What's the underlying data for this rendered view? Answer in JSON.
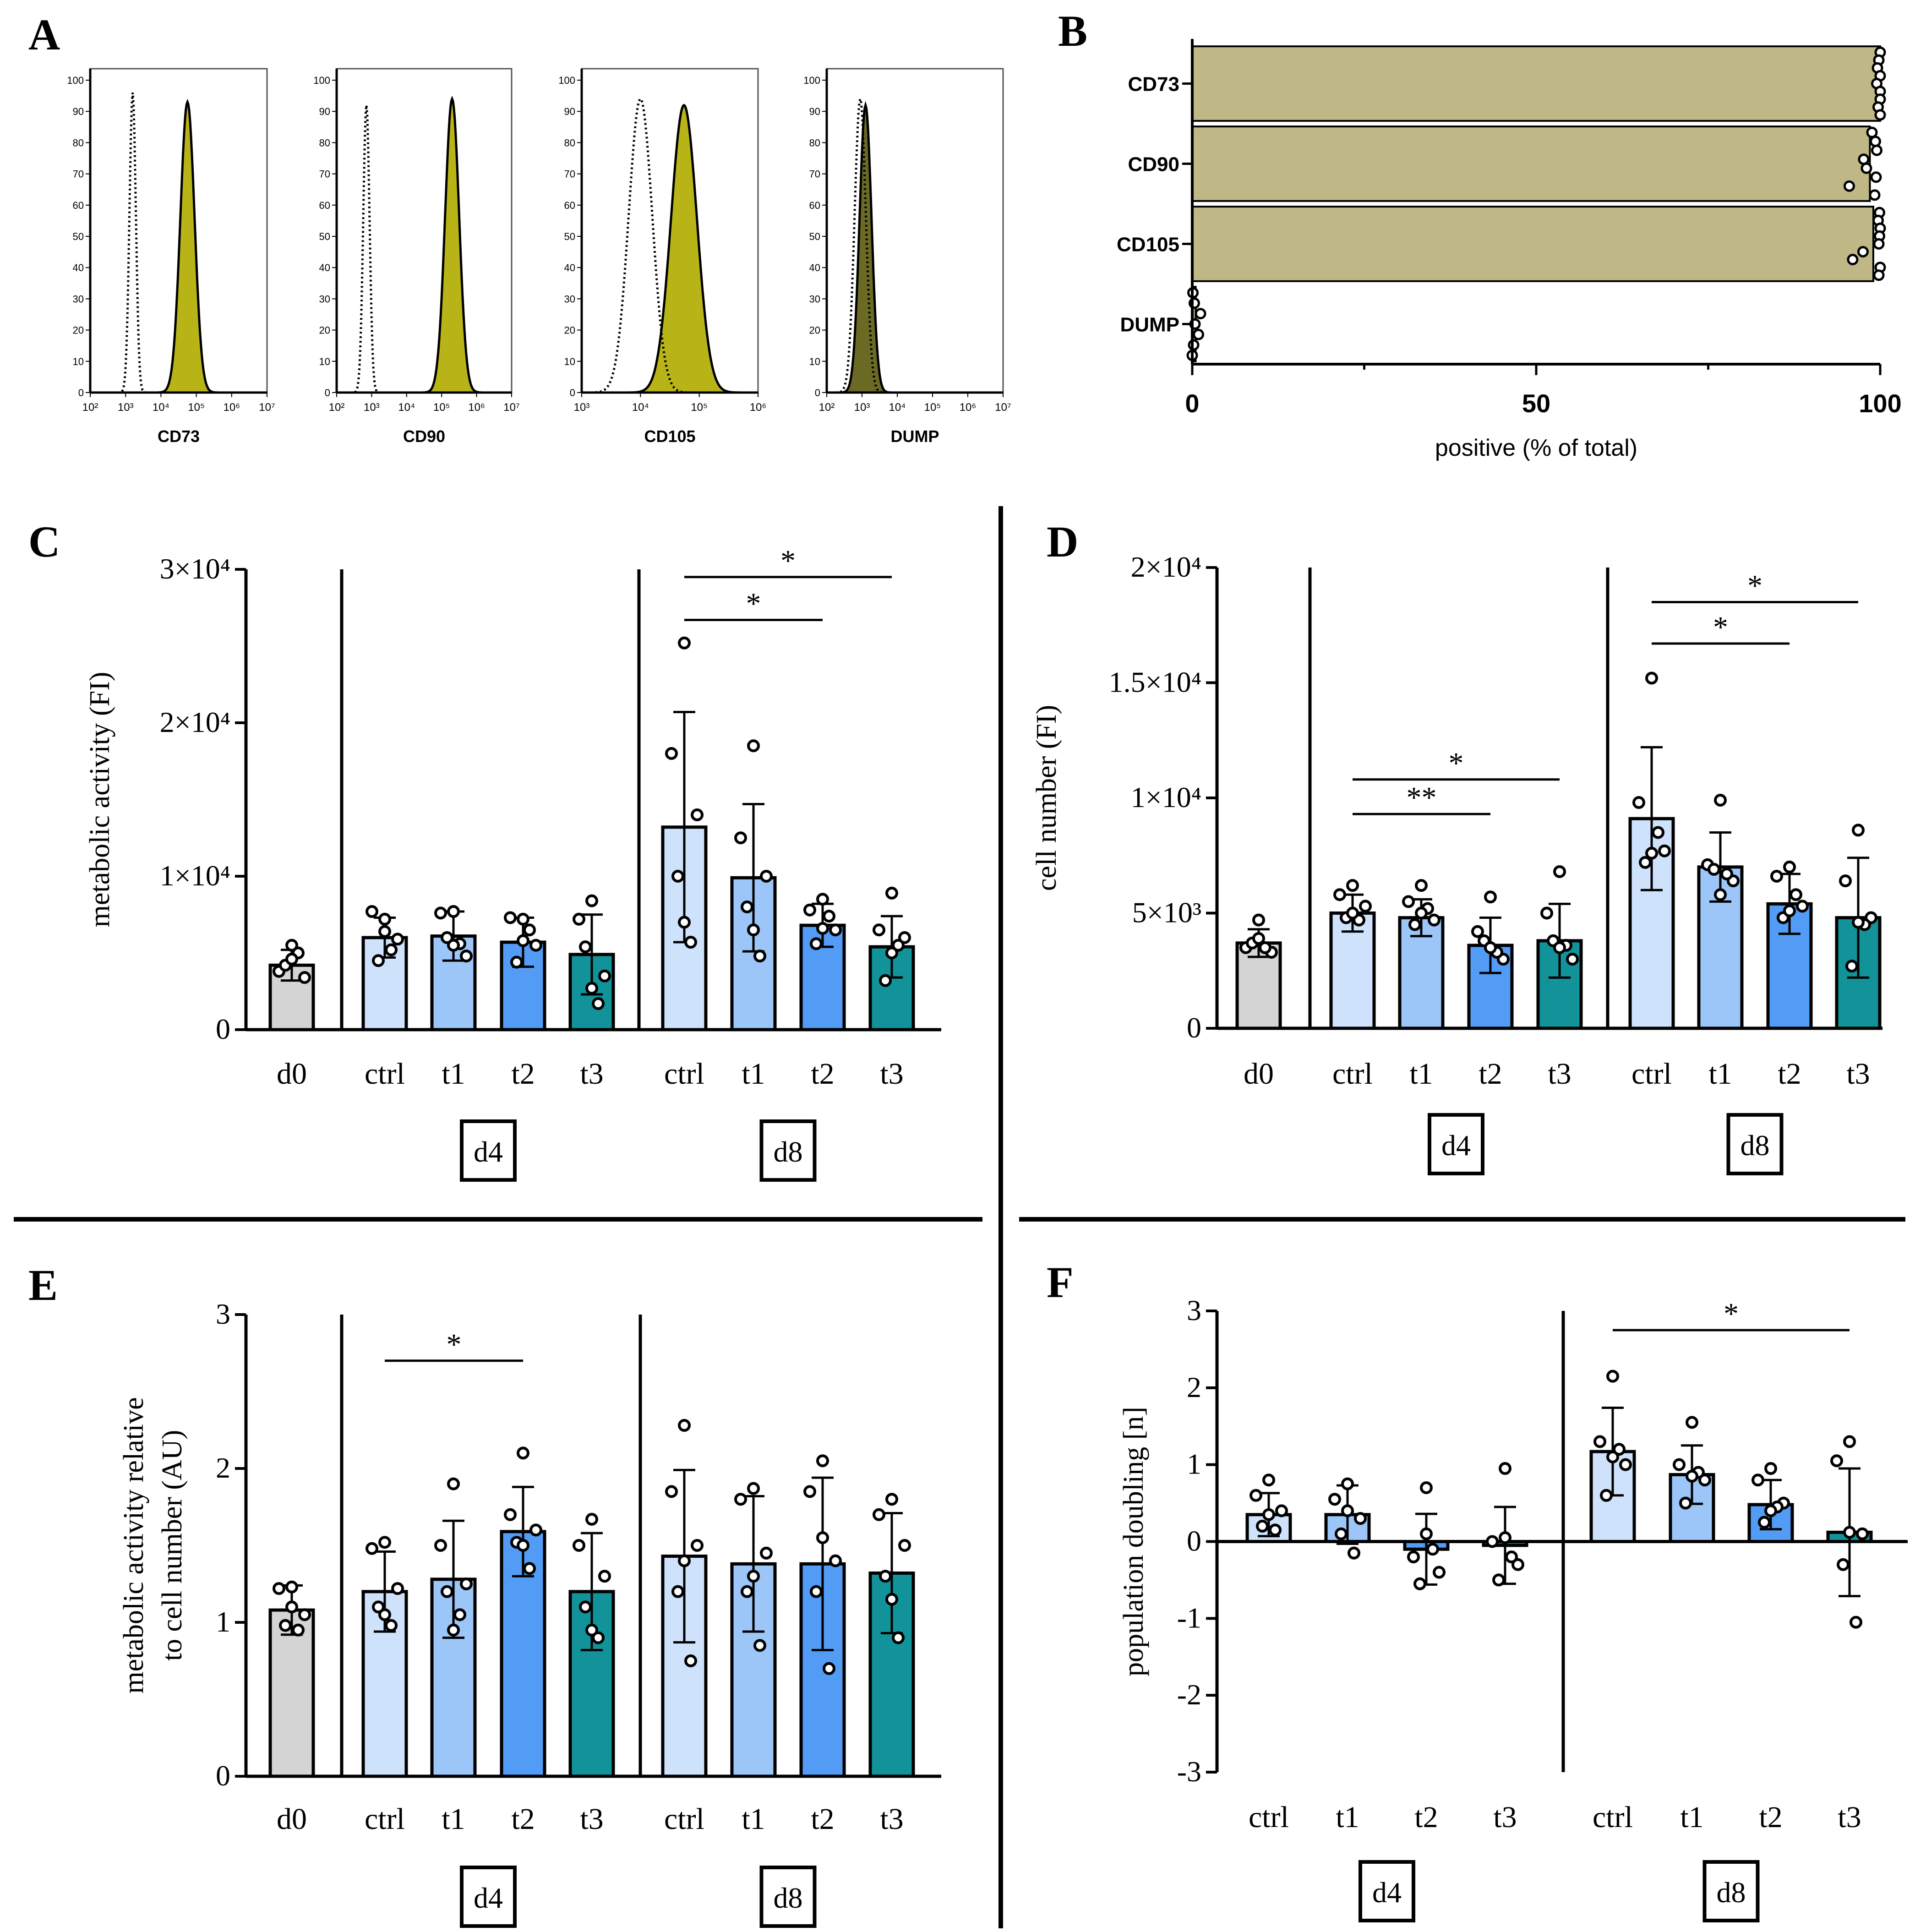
{
  "figure": {
    "title": ""
  },
  "colors": {
    "d0": "#d4d4d4",
    "ctrl": "#cfe2fb",
    "t1": "#9cc6f8",
    "t2": "#529cf5",
    "t3": "#12939a",
    "histFill": "#b8b418",
    "histFillDump": "#6b6a25",
    "barB": "#bfb785"
  },
  "panels": {
    "A": {
      "letter": "A"
    },
    "B": {
      "letter": "B"
    },
    "C": {
      "letter": "C"
    },
    "D": {
      "letter": "D"
    },
    "E": {
      "letter": "E"
    },
    "F": {
      "letter": "F"
    }
  },
  "chart_data": [
    {
      "id": "A",
      "type": "histogram",
      "title": "",
      "ylabel": "",
      "ylim": [
        0,
        100
      ],
      "yticks": [
        "0",
        "10",
        "20",
        "30",
        "40",
        "50",
        "60",
        "70",
        "80",
        "90",
        "100"
      ],
      "subplots": [
        {
          "name": "CD73",
          "xlabel": "CD73",
          "xticks": [
            "10²",
            "10³",
            "10⁴",
            "10⁵",
            "10⁶",
            "10⁷"
          ],
          "xlog": [
            2,
            7
          ],
          "control": {
            "peak_log": 3.2,
            "sd": 0.09,
            "height": 96
          },
          "stained": {
            "peak_log": 4.75,
            "sd": 0.2,
            "height": 93
          }
        },
        {
          "name": "CD90",
          "xlabel": "CD90",
          "xticks": [
            "10²",
            "10³",
            "10⁴",
            "10⁵",
            "10⁶",
            "10⁷"
          ],
          "xlog": [
            2,
            7
          ],
          "control": {
            "peak_log": 2.85,
            "sd": 0.09,
            "height": 92
          },
          "stained": {
            "peak_log": 5.3,
            "sd": 0.2,
            "height": 94
          }
        },
        {
          "name": "CD105",
          "xlabel": "CD105",
          "xticks": [
            "10³",
            "10⁴",
            "10⁵",
            "10⁶"
          ],
          "xlog": [
            3,
            6
          ],
          "control": {
            "peak_log": 4.0,
            "sd": 0.2,
            "height": 94
          },
          "stained": {
            "peak_log": 4.74,
            "sd": 0.22,
            "height": 92
          }
        },
        {
          "name": "DUMP",
          "xlabel": "DUMP",
          "xticks": [
            "10²",
            "10³",
            "10⁴",
            "10⁵",
            "10⁶",
            "10⁷"
          ],
          "xlog": [
            2,
            7
          ],
          "control": {
            "peak_log": 2.95,
            "sd": 0.16,
            "height": 94
          },
          "stained": {
            "peak_log": 3.1,
            "sd": 0.17,
            "height": 92
          }
        }
      ]
    },
    {
      "id": "B",
      "type": "bar",
      "orientation": "horizontal",
      "categories": [
        "CD73",
        "CD90",
        "CD105",
        "DUMP"
      ],
      "values": [
        100,
        98.5,
        99,
        0.5
      ],
      "points": [
        [
          100,
          99.8,
          99.6,
          100,
          99.5,
          100,
          100,
          99.7,
          100
        ],
        [
          98.8,
          99.3,
          99.5,
          97.6,
          98.0,
          99.4,
          95.5,
          99.2
        ],
        [
          99.9,
          99.7,
          100,
          99.9,
          99.8,
          97.5,
          96.0,
          100,
          99.8
        ],
        [
          0.1,
          0.3,
          1.2,
          0.4,
          0.9,
          0.2,
          0
        ]
      ],
      "xlim": [
        0,
        100
      ],
      "xticks": [
        "0",
        "50",
        "100"
      ],
      "xlabel": "positive (% of total)",
      "ylabel": ""
    },
    {
      "id": "C",
      "type": "bar",
      "ylabel": "metabolic activity (FI)",
      "ylim": [
        0,
        30000
      ],
      "yticks": [
        "0",
        "1×10⁴",
        "2×10⁴",
        "3×10⁴"
      ],
      "yticks_values": [
        0,
        10000,
        20000,
        30000
      ],
      "categories": [
        "d0",
        "ctrl",
        "t1",
        "t2",
        "t3",
        "ctrl",
        "t1",
        "t2",
        "t3"
      ],
      "groups": [
        {
          "name": "",
          "start": 0,
          "end": 0
        },
        {
          "name": "d4",
          "start": 1,
          "end": 4
        },
        {
          "name": "d8",
          "start": 5,
          "end": 8
        }
      ],
      "series": [
        {
          "name": "mean",
          "values": [
            4200,
            6000,
            6100,
            5700,
            4900,
            13200,
            9900,
            6800,
            5400
          ]
        }
      ],
      "sd": [
        1000,
        1300,
        1600,
        1600,
        2600,
        7500,
        4800,
        1400,
        2000
      ],
      "points": [
        [
          5500,
          3800,
          3400,
          4200,
          5000,
          4600
        ],
        [
          7200,
          7700,
          5900,
          4500,
          5200,
          6400
        ],
        [
          7700,
          7600,
          4800,
          6000,
          5600,
          5500
        ],
        [
          7200,
          7300,
          5500,
          4400,
          6500,
          5800
        ],
        [
          8400,
          7200,
          3500,
          5400,
          1700,
          2700
        ],
        [
          25200,
          18000,
          14000,
          10000,
          5700,
          7000
        ],
        [
          18500,
          12500,
          10000,
          8000,
          4800,
          6500
        ],
        [
          8500,
          7800,
          6500,
          5600,
          7400,
          6600
        ],
        [
          8900,
          6500,
          6000,
          3200,
          5500,
          5000
        ]
      ],
      "significance": [
        {
          "from": 5,
          "to": 8,
          "label": "*",
          "y": 29500
        },
        {
          "from": 5,
          "to": 7,
          "label": "*",
          "y": 26700
        }
      ]
    },
    {
      "id": "D",
      "type": "bar",
      "ylabel": "cell number (FI)",
      "ylim": [
        0,
        20000
      ],
      "yticks": [
        "0",
        "5×10³",
        "1×10⁴",
        "1.5×10⁴",
        "2×10⁴"
      ],
      "yticks_values": [
        0,
        5000,
        10000,
        15000,
        20000
      ],
      "categories": [
        "d0",
        "ctrl",
        "t1",
        "t2",
        "t3",
        "ctrl",
        "t1",
        "t2",
        "t3"
      ],
      "groups": [
        {
          "name": "",
          "start": 0,
          "end": 0
        },
        {
          "name": "d4",
          "start": 1,
          "end": 4
        },
        {
          "name": "d8",
          "start": 5,
          "end": 8
        }
      ],
      "series": [
        {
          "name": "mean",
          "values": [
            3700,
            5000,
            4800,
            3600,
            3800,
            9100,
            7000,
            5400,
            4800
          ]
        }
      ],
      "sd": [
        600,
        800,
        800,
        1200,
        1600,
        3100,
        1500,
        1300,
        2600
      ],
      "points": [
        [
          4700,
          3500,
          3300,
          3700,
          3500,
          3900
        ],
        [
          6200,
          5800,
          5300,
          4800,
          4700,
          5000
        ],
        [
          6200,
          5500,
          4700,
          4500,
          5200,
          5000
        ],
        [
          5700,
          4200,
          3000,
          3800,
          3300,
          3500
        ],
        [
          6800,
          5000,
          3000,
          3800,
          3600,
          3500
        ],
        [
          15200,
          9800,
          7700,
          7200,
          8500,
          7600
        ],
        [
          9900,
          7100,
          6400,
          6900,
          6700,
          5800
        ],
        [
          7000,
          6600,
          5300,
          4800,
          5800,
          5100
        ],
        [
          8600,
          6400,
          4800,
          2700,
          4500,
          4600
        ]
      ],
      "significance": [
        {
          "from": 5,
          "to": 8,
          "label": "*",
          "y": 18500
        },
        {
          "from": 5,
          "to": 7,
          "label": "*",
          "y": 16700
        },
        {
          "from": 1,
          "to": 4,
          "label": "*",
          "y": 10800
        },
        {
          "from": 1,
          "to": 3,
          "label": "**",
          "y": 9300
        }
      ]
    },
    {
      "id": "E",
      "type": "bar",
      "ylabel": "metabolic activity relative\nto cell number (AU)",
      "ylim": [
        0,
        3
      ],
      "yticks": [
        "0",
        "1",
        "2",
        "3"
      ],
      "yticks_values": [
        0,
        1,
        2,
        3
      ],
      "categories": [
        "d0",
        "ctrl",
        "t1",
        "t2",
        "t3",
        "ctrl",
        "t1",
        "t2",
        "t3"
      ],
      "groups": [
        {
          "name": "",
          "start": 0,
          "end": 0
        },
        {
          "name": "d4",
          "start": 1,
          "end": 4
        },
        {
          "name": "d8",
          "start": 5,
          "end": 8
        }
      ],
      "series": [
        {
          "name": "mean",
          "values": [
            1.08,
            1.2,
            1.28,
            1.59,
            1.2,
            1.43,
            1.38,
            1.38,
            1.32
          ]
        }
      ],
      "sd": [
        0.16,
        0.26,
        0.38,
        0.29,
        0.38,
        0.56,
        0.44,
        0.56,
        0.39
      ],
      "points": [
        [
          1.23,
          1.22,
          1.05,
          0.98,
          0.95,
          1.1
        ],
        [
          1.52,
          1.48,
          1.22,
          1.1,
          0.98,
          1.05
        ],
        [
          1.9,
          1.5,
          1.25,
          1.2,
          1.05,
          0.95
        ],
        [
          2.1,
          1.7,
          1.6,
          1.52,
          1.35,
          1.5
        ],
        [
          1.67,
          1.5,
          1.3,
          1.1,
          0.9,
          0.95
        ],
        [
          2.28,
          1.85,
          1.5,
          1.2,
          0.75,
          1.4
        ],
        [
          1.87,
          1.8,
          1.45,
          1.2,
          0.85,
          1.3
        ],
        [
          2.05,
          1.85,
          1.4,
          1.2,
          0.7,
          1.55
        ],
        [
          1.8,
          1.7,
          1.5,
          1.3,
          0.9,
          1.15
        ]
      ],
      "significance": [
        {
          "from": 1,
          "to": 3,
          "label": "*",
          "y": 2.7
        }
      ]
    },
    {
      "id": "F",
      "type": "bar",
      "ylabel": "population doubling [n]",
      "ylim": [
        -3,
        3
      ],
      "yticks": [
        "-3",
        "-2",
        "-1",
        "0",
        "1",
        "2",
        "3"
      ],
      "yticks_values": [
        -3,
        -2,
        -1,
        0,
        1,
        2,
        3
      ],
      "categories": [
        "ctrl",
        "t1",
        "t2",
        "t3",
        "ctrl",
        "t1",
        "t2",
        "t3"
      ],
      "groups": [
        {
          "name": "d4",
          "start": 0,
          "end": 3
        },
        {
          "name": "d8",
          "start": 4,
          "end": 7
        }
      ],
      "series": [
        {
          "name": "mean",
          "values": [
            0.35,
            0.35,
            -0.1,
            -0.05,
            1.17,
            0.87,
            0.48,
            0.12
          ]
        }
      ],
      "sd": [
        0.28,
        0.38,
        0.46,
        0.5,
        0.57,
        0.38,
        0.32,
        0.83
      ],
      "points": [
        [
          0.8,
          0.6,
          0.4,
          0.2,
          0.15,
          0.35
        ],
        [
          0.75,
          0.55,
          0.3,
          0.1,
          -0.15,
          0.4
        ],
        [
          0.7,
          -0.2,
          -0.4,
          -0.55,
          -0.1,
          0.1
        ],
        [
          0.95,
          0.0,
          -0.3,
          -0.5,
          -0.2,
          0.05
        ],
        [
          2.15,
          1.3,
          1.0,
          0.6,
          1.2,
          1.1
        ],
        [
          1.55,
          1.0,
          0.8,
          0.5,
          0.9,
          0.85
        ],
        [
          0.95,
          0.8,
          0.5,
          0.25,
          0.45,
          0.4
        ],
        [
          1.3,
          1.05,
          0.1,
          -0.3,
          -1.05,
          0.12
        ]
      ],
      "significance": [
        {
          "from": 4,
          "to": 7,
          "label": "*",
          "y": 2.75
        }
      ]
    }
  ]
}
